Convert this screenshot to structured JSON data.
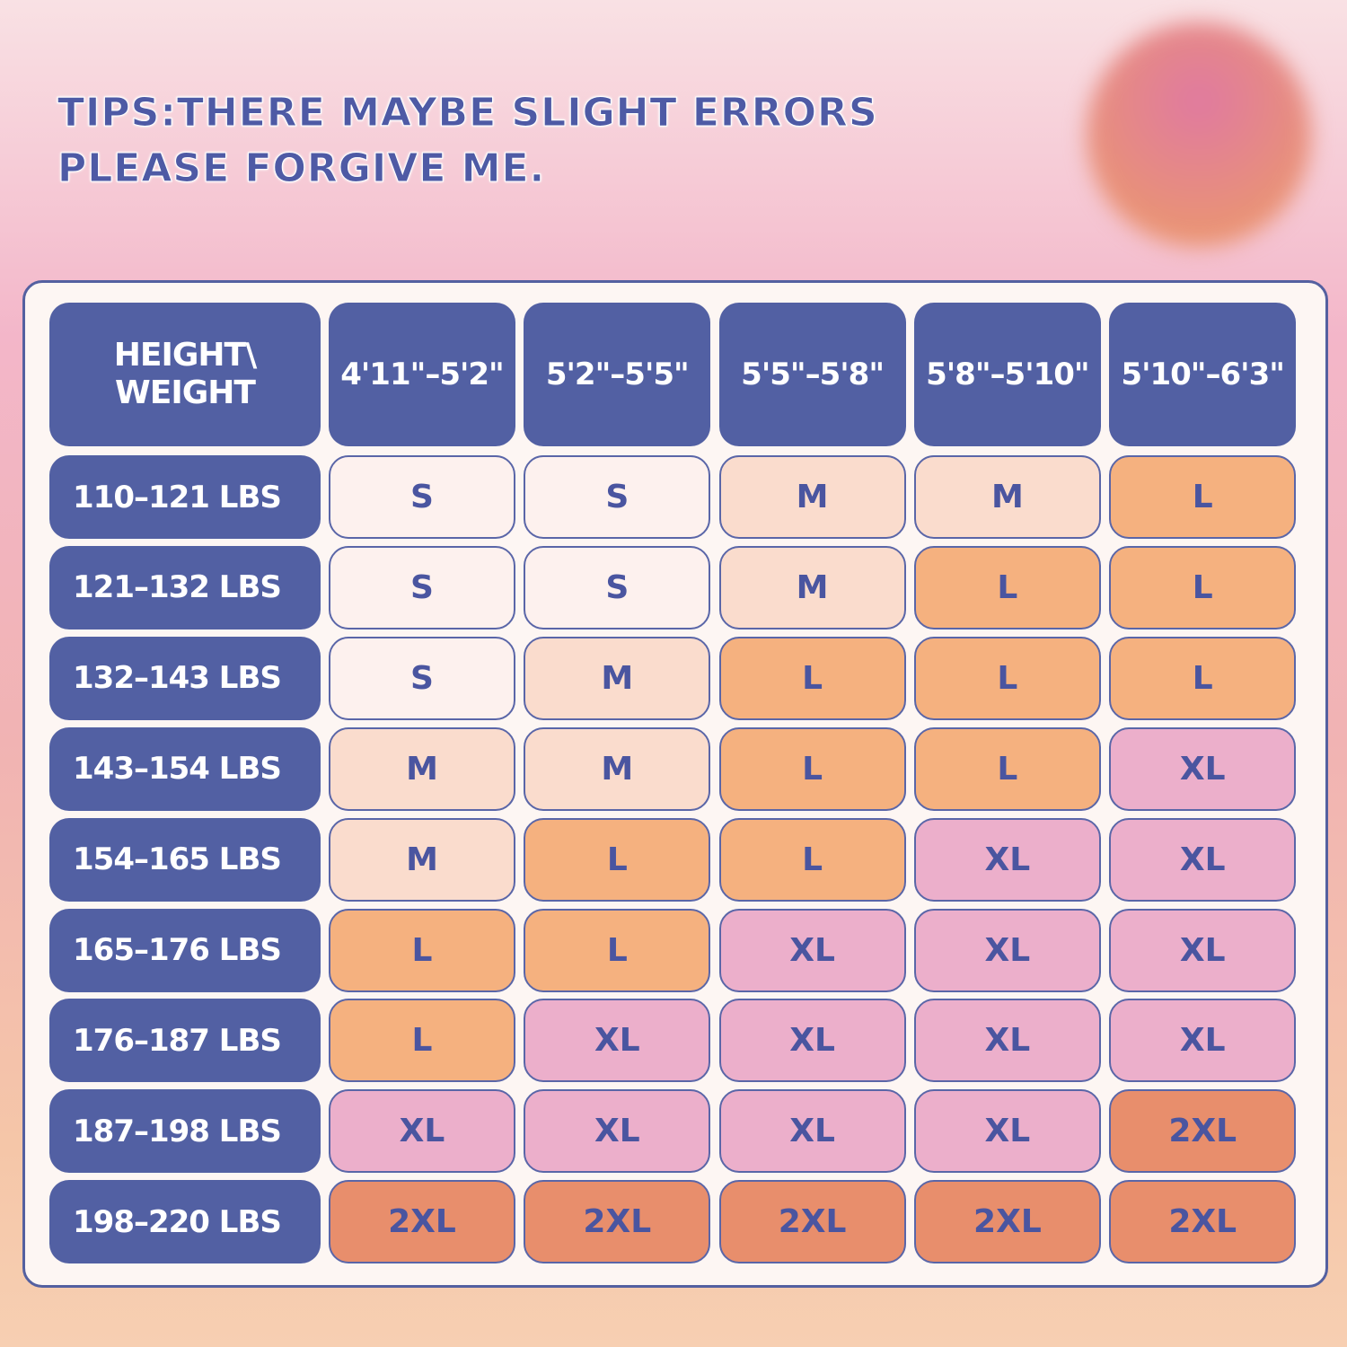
{
  "tips": [
    "TIPS:THERE MAYBE SLIGHT ERRORS",
    "PLEASE FORGIVE ME."
  ],
  "table": {
    "corner": [
      "HEIGHT\\",
      "WEIGHT"
    ],
    "columns": [
      "4'11\"–5'2\"",
      "5'2\"–5'5\"",
      "5'5\"–5'8\"",
      "5'8\"–5'10\"",
      "5'10\"–6'3\""
    ],
    "size_colors": {
      "S": "#fdf1ee",
      "M": "#fadccd",
      "L": "#f5b17f",
      "XL": "#ecafcb",
      "2XL": "#e88e6c"
    },
    "rows": [
      {
        "label": "110–121 LBS",
        "sizes": [
          "S",
          "S",
          "M",
          "M",
          "L"
        ]
      },
      {
        "label": "121–132 LBS",
        "sizes": [
          "S",
          "S",
          "M",
          "L",
          "L"
        ]
      },
      {
        "label": "132–143 LBS",
        "sizes": [
          "S",
          "M",
          "L",
          "L",
          "L"
        ]
      },
      {
        "label": "143–154 LBS",
        "sizes": [
          "M",
          "M",
          "L",
          "L",
          "XL"
        ]
      },
      {
        "label": "154–165 LBS",
        "sizes": [
          "M",
          "L",
          "L",
          "XL",
          "XL"
        ]
      },
      {
        "label": "165–176 LBS",
        "sizes": [
          "L",
          "L",
          "XL",
          "XL",
          "XL"
        ]
      },
      {
        "label": "176–187 LBS",
        "sizes": [
          "L",
          "XL",
          "XL",
          "XL",
          "XL"
        ]
      },
      {
        "label": "187–198 LBS",
        "sizes": [
          "XL",
          "XL",
          "XL",
          "XL",
          "2XL"
        ]
      },
      {
        "label": "198–220 LBS",
        "sizes": [
          "2XL",
          "2XL",
          "2XL",
          "2XL",
          "2XL"
        ]
      }
    ]
  }
}
